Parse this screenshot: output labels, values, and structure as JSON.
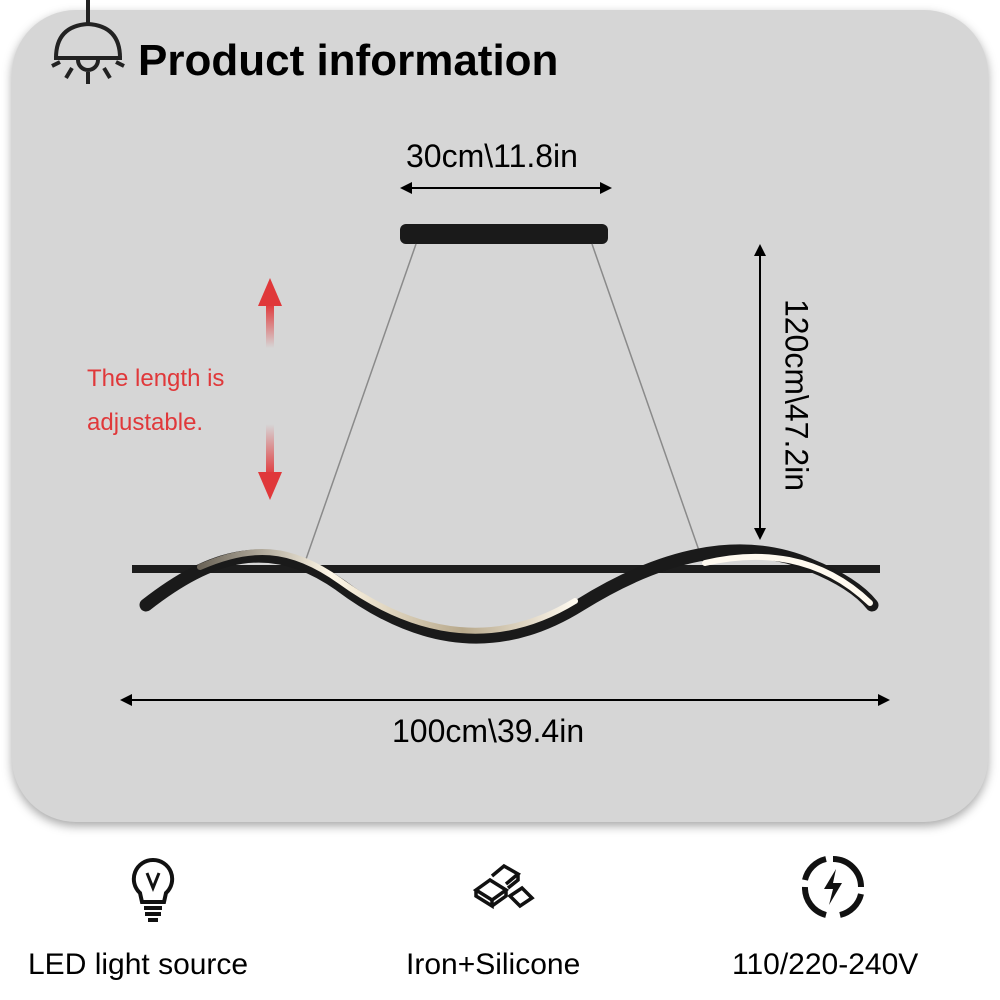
{
  "header": {
    "title": "Product information",
    "icon": "pendant-lamp-icon"
  },
  "dimensions": {
    "top_width": "30cm\\11.8in",
    "height": "120cm\\47.2in",
    "bottom_width": "100cm\\39.4in"
  },
  "adjustable_note": {
    "line1": "The length is",
    "line2": "adjustable.",
    "color": "#e0383a"
  },
  "features": [
    {
      "icon": "light-bulb-icon",
      "label": "LED  light source"
    },
    {
      "icon": "material-bars-icon",
      "label": "Iron+Silicone"
    },
    {
      "icon": "voltage-bolt-icon",
      "label": "110/220-240V"
    }
  ]
}
